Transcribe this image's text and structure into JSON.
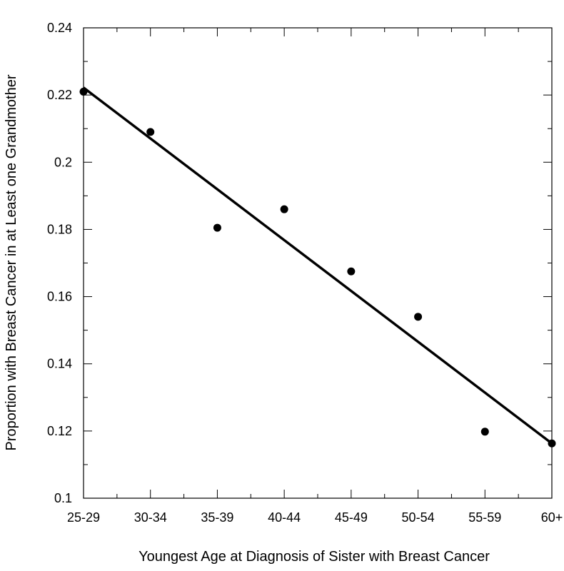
{
  "chart_data": {
    "type": "scatter",
    "title": "",
    "xlabel": "Youngest Age at Diagnosis of Sister with Breast Cancer",
    "ylabel": "Proportion with Breast Cancer in at Least one Grandmother",
    "categories": [
      "25-29",
      "30-34",
      "35-39",
      "40-44",
      "45-49",
      "50-54",
      "55-59",
      "60+"
    ],
    "ylim": [
      0.1,
      0.24
    ],
    "y_ticks": [
      "0.1",
      "0.12",
      "0.14",
      "0.16",
      "0.18",
      "0.2",
      "0.22",
      "0.24"
    ],
    "grid": false,
    "series": [
      {
        "values": [
          0.221,
          0.209,
          0.1805,
          0.186,
          0.1675,
          0.154,
          0.1198,
          0.1163
        ]
      }
    ],
    "fit_line": {
      "start": 0.2222,
      "end": 0.1163
    }
  }
}
